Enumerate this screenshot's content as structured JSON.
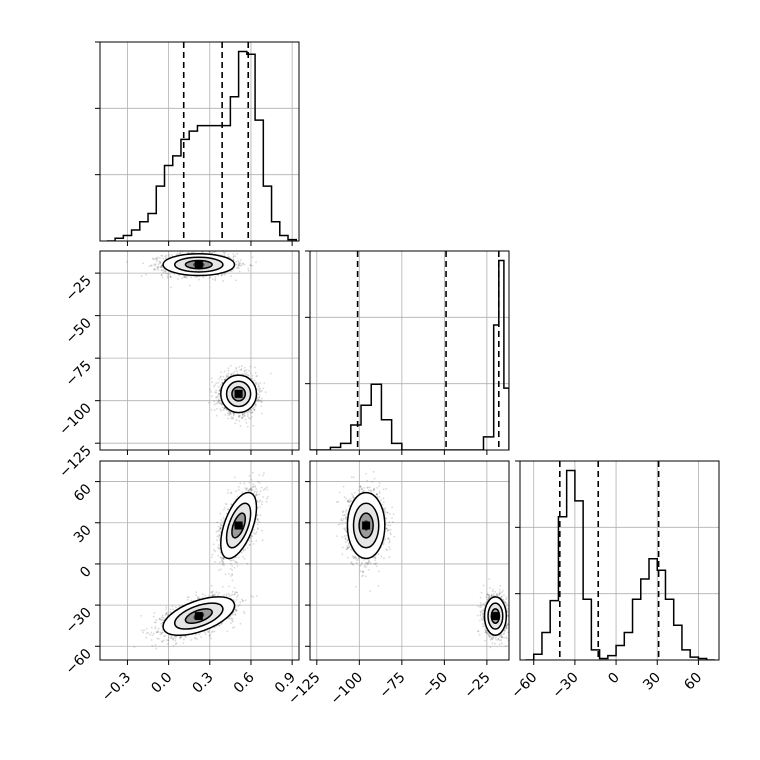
{
  "chart_data": {
    "type": "corner",
    "title": "",
    "params": [
      {
        "range": [
          -0.5,
          0.95
        ],
        "ticks": [
          {
            "v": -0.3,
            "label": "−0.3"
          },
          {
            "v": 0.0,
            "label": "0.0"
          },
          {
            "v": 0.3,
            "label": "0.3"
          },
          {
            "v": 0.6,
            "label": "0.6"
          },
          {
            "v": 0.9,
            "label": "0.9"
          }
        ],
        "quantiles": [
          0.11,
          0.39,
          0.58
        ],
        "hist": {
          "edges": [
            -0.45,
            -0.39,
            -0.33,
            -0.27,
            -0.21,
            -0.15,
            -0.09,
            -0.03,
            0.03,
            0.09,
            0.15,
            0.21,
            0.27,
            0.33,
            0.39,
            0.45,
            0.51,
            0.57,
            0.63,
            0.69,
            0.75,
            0.81,
            0.87,
            0.93
          ],
          "counts": [
            0,
            0.02,
            0.04,
            0.08,
            0.14,
            0.2,
            0.4,
            0.55,
            0.62,
            0.74,
            0.8,
            0.84,
            0.84,
            0.84,
            0.84,
            1.05,
            1.38,
            1.36,
            0.88,
            0.4,
            0.14,
            0.04,
            0.01
          ]
        }
      },
      {
        "range": [
          -129,
          -12
        ],
        "ticks": [
          {
            "v": -125,
            "label": "−125"
          },
          {
            "v": -100,
            "label": "−100"
          },
          {
            "v": -75,
            "label": "−75"
          },
          {
            "v": -50,
            "label": "−50"
          },
          {
            "v": -25,
            "label": "−25"
          }
        ],
        "quantiles": [
          -101,
          -49,
          -18
        ],
        "hist": {
          "edges": [
            -129,
            -123,
            -117,
            -111,
            -105,
            -99,
            -93,
            -87,
            -81,
            -75,
            -69,
            -63,
            -57,
            -51,
            -45,
            -39,
            -33,
            -27,
            -21,
            -18,
            -15,
            -12
          ],
          "counts": [
            0,
            0,
            0.02,
            0.05,
            0.19,
            0.34,
            0.5,
            0.23,
            0.05,
            0.0,
            0.0,
            0.0,
            0.0,
            0.0,
            0.0,
            0.0,
            0.0,
            0.1,
            0.95,
            1.44,
            0.47
          ]
        }
      },
      {
        "range": [
          -70,
          75
        ],
        "ticks": [
          {
            "v": -60,
            "label": "−60"
          },
          {
            "v": -30,
            "label": "−30"
          },
          {
            "v": 0,
            "label": "0"
          },
          {
            "v": 30,
            "label": "30"
          },
          {
            "v": 60,
            "label": "60"
          }
        ],
        "quantiles": [
          -41,
          -13,
          31
        ],
        "hist": {
          "edges": [
            -66,
            -60,
            -54,
            -48,
            -42,
            -36,
            -30,
            -24,
            -18,
            -12,
            -6,
            0,
            6,
            12,
            18,
            24,
            30,
            36,
            42,
            48,
            54,
            60,
            66,
            72
          ],
          "counts": [
            0,
            0.04,
            0.19,
            0.41,
            0.99,
            1.31,
            1.1,
            0.42,
            0.07,
            0.01,
            0.03,
            0.1,
            0.19,
            0.42,
            0.56,
            0.7,
            0.62,
            0.42,
            0.24,
            0.07,
            0.02,
            0.01,
            0
          ]
        }
      }
    ],
    "clusters": [
      {
        "center": [
          0.22,
          -20,
          -38
        ],
        "sd": [
          0.13,
          3.2,
          7
        ]
      },
      {
        "center": [
          0.51,
          -96,
          28
        ],
        "sd": [
          0.065,
          5.5,
          12
        ]
      }
    ],
    "contour_levels": [
      0.12,
      0.42,
      0.73
    ],
    "grid": true,
    "quantile_line_style": "dashed",
    "colors": {
      "ink": "#000000",
      "grid": "#b0b0b0",
      "fill_dark": "#000000",
      "fill_light": "#ffffff"
    }
  }
}
